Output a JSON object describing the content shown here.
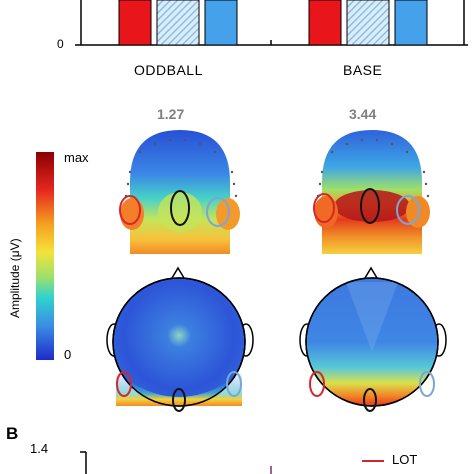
{
  "panel_a": {
    "axis_zero": "0",
    "conditions": [
      {
        "label": "ODDBALL",
        "value_label": "1.27"
      },
      {
        "label": "BASE",
        "value_label": "3.44"
      }
    ],
    "bar_colors": {
      "red": "#e8151b",
      "hatched": "#aad4ee",
      "blue": "#45a1ea"
    },
    "colorbar": {
      "max_label": "max",
      "min_label": "0",
      "title": "Amplitude (μV)",
      "colors": [
        "#8b0000",
        "#e52620",
        "#f5a21f",
        "#f3e23a",
        "#9fe06b",
        "#2fd3cc",
        "#3a8be4",
        "#1d2bc6"
      ]
    },
    "roi_colors": {
      "left": "#d5262e",
      "middle": "#111111",
      "right": "#7aa6d8"
    }
  },
  "panel_b": {
    "panel_label": "B",
    "y_tick_top": "1.4",
    "legend": [
      {
        "label": "LOT",
        "color": "#d5262e"
      }
    ]
  }
}
